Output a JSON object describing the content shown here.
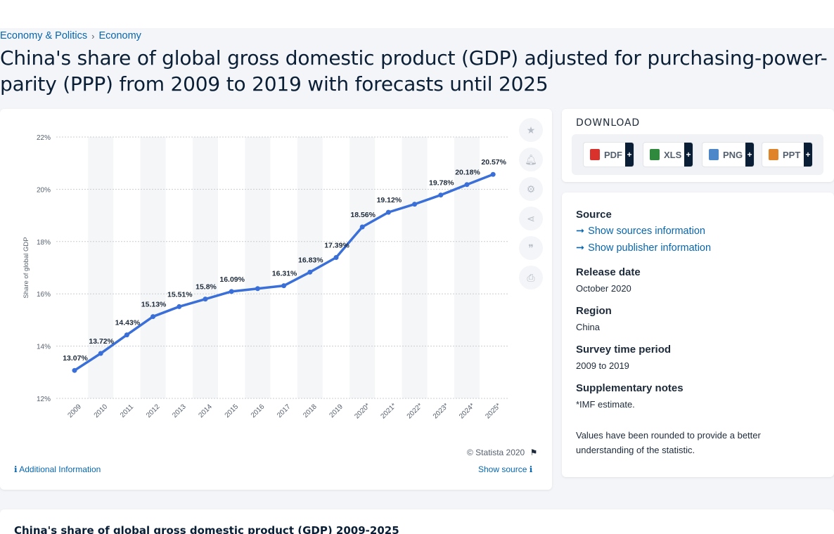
{
  "breadcrumb": {
    "items": [
      "Economy & Politics",
      "Economy"
    ],
    "separator": "›"
  },
  "page_title": "China's share of global gross domestic product (GDP) adjusted for purchasing-power-parity (PPP) from 2009 to 2019 with forecasts until 2025",
  "chart_data": {
    "type": "line",
    "categories": [
      "2009",
      "2010",
      "2011",
      "2012",
      "2013",
      "2014",
      "2015",
      "2016",
      "2017",
      "2018",
      "2019",
      "2020*",
      "2021*",
      "2022*",
      "2023*",
      "2024*",
      "2025*"
    ],
    "values": [
      13.07,
      13.72,
      14.43,
      15.13,
      15.51,
      15.8,
      16.09,
      16.2,
      16.31,
      16.83,
      17.39,
      18.56,
      19.12,
      19.43,
      19.78,
      20.18,
      20.57
    ],
    "data_labels": [
      "13.07%",
      "13.72%",
      "14.43%",
      "15.13%",
      "15.51%",
      "15.8%",
      "16.09%",
      "",
      "16.31%",
      "16.83%",
      "17.39%",
      "18.56%",
      "19.12%",
      "",
      "19.78%",
      "20.18%",
      "20.57%"
    ],
    "ylabel": "Share of global GDP",
    "ylim": [
      12,
      22
    ],
    "yticks": [
      "12%",
      "14%",
      "16%",
      "18%",
      "20%",
      "22%"
    ],
    "color": "#3a6fd8",
    "grid": true
  },
  "chart_footer": {
    "credit": "© Statista 2020",
    "additional_info": "Additional Information",
    "show_source": "Show source"
  },
  "tools": [
    "star-icon",
    "bell-icon",
    "gear-icon",
    "share-icon",
    "quote-icon",
    "print-icon"
  ],
  "download": {
    "title": "DOWNLOAD",
    "buttons": [
      {
        "label": "PDF",
        "color": "#d9312b"
      },
      {
        "label": "XLS",
        "color": "#2f8a3d"
      },
      {
        "label": "PNG",
        "color": "#4b87c9"
      },
      {
        "label": "PPT",
        "color": "#e0842a"
      }
    ],
    "plus": "+"
  },
  "info": {
    "source_label": "Source",
    "show_sources": "Show sources information",
    "show_publisher": "Show publisher information",
    "release_label": "Release date",
    "release_value": "October 2020",
    "region_label": "Region",
    "region_value": "China",
    "survey_label": "Survey time period",
    "survey_value": "2009 to 2019",
    "notes_label": "Supplementary notes",
    "notes_1": "*IMF estimate.",
    "notes_2": "Values have been rounded to provide a better understanding of the statistic."
  },
  "bottom": {
    "title": "China's share of global gross domestic product (GDP) 2009-2025"
  }
}
